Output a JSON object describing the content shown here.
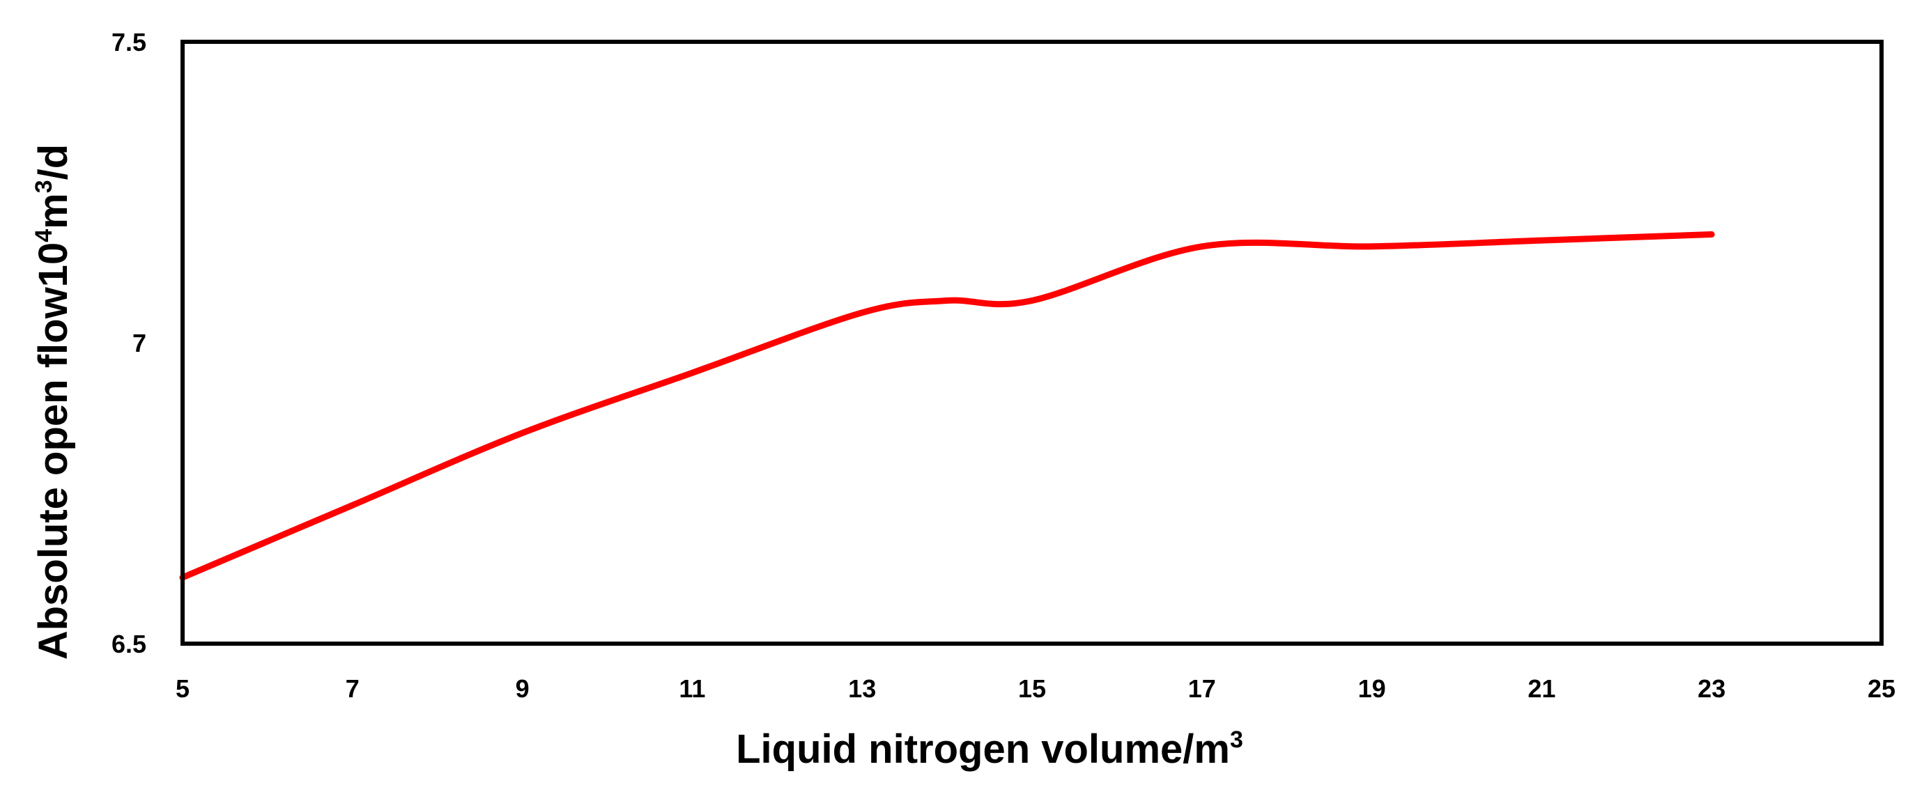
{
  "chart_data": {
    "type": "line",
    "title": "",
    "xlabel": "Liquid nitrogen volume/m",
    "xlabel_sup": "3",
    "ylabel": "Absolute open flow10",
    "ylabel_sup1": "4",
    "ylabel_mid": "m",
    "ylabel_sup2": "3",
    "ylabel_end": "/d",
    "xlim": [
      5,
      25
    ],
    "ylim": [
      6.5,
      7.5
    ],
    "x_ticks": [
      "5",
      "7",
      "9",
      "11",
      "13",
      "15",
      "17",
      "19",
      "21",
      "23",
      "25"
    ],
    "y_ticks": [
      "6.5",
      "7",
      "7.5"
    ],
    "grid": false,
    "legend": "none",
    "series": [
      {
        "color": "#ff0000",
        "x": [
          5,
          7,
          9,
          11,
          13,
          14,
          15,
          17,
          19,
          21,
          23
        ],
        "y": [
          6.61,
          6.73,
          6.85,
          6.95,
          7.05,
          7.07,
          7.07,
          7.16,
          7.16,
          7.17,
          7.18
        ]
      }
    ]
  }
}
